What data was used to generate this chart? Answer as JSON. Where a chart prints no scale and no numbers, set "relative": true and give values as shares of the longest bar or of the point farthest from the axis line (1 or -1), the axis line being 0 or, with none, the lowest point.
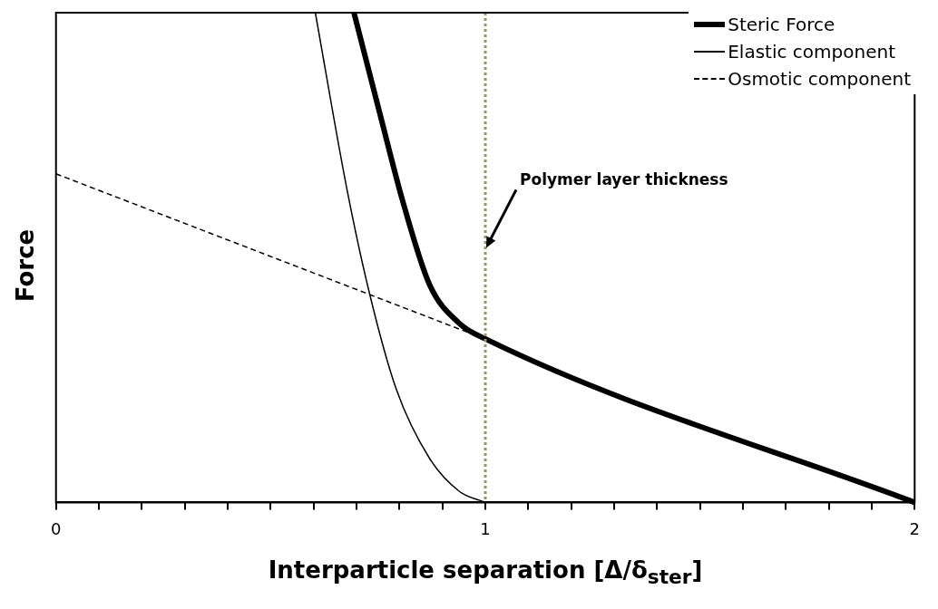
{
  "chart_data": {
    "type": "line",
    "relative": true,
    "xlabel": "Interparticle separation [Δ/δ$_{ster}$]",
    "ylabel": "Force",
    "xlim": [
      0,
      2
    ],
    "xticks": [
      0,
      {
        "value": 0.1,
        "label": null
      },
      {
        "value": 0.2,
        "label": null
      },
      {
        "value": 0.3,
        "label": null
      },
      {
        "value": 0.4,
        "label": null
      },
      {
        "value": 0.5,
        "label": null
      },
      {
        "value": 0.6,
        "label": null
      },
      {
        "value": 0.7,
        "label": null
      },
      {
        "value": 0.8,
        "label": null
      },
      {
        "value": 0.9,
        "label": null
      },
      1,
      {
        "value": 1.1,
        "label": null
      },
      {
        "value": 1.2,
        "label": null
      },
      {
        "value": 1.3,
        "label": null
      },
      {
        "value": 1.4,
        "label": null
      },
      {
        "value": 1.5,
        "label": null
      },
      {
        "value": 1.6,
        "label": null
      },
      {
        "value": 1.7,
        "label": null
      },
      {
        "value": 1.8,
        "label": null
      },
      {
        "value": 1.9,
        "label": null
      },
      2
    ],
    "series": [
      {
        "name": "Steric Force",
        "color": "#000000",
        "line_style": "solid",
        "x": [
          0.694,
          0.755,
          0.809,
          0.87,
          0.939,
          1,
          2
        ],
        "values": [
          1,
          0.792,
          0.611,
          0.445,
          0.366,
          0.334,
          0
        ]
      },
      {
        "name": "Elastic component",
        "color": "#000000",
        "line_style": "solid",
        "x": [
          0.604,
          0.678,
          0.731,
          0.793,
          0.87,
          0.939,
          1
        ],
        "values": [
          1,
          0.638,
          0.424,
          0.23,
          0.09,
          0.023,
          0
        ]
      },
      {
        "name": "Osmotic component",
        "color": "#000000",
        "line_style": "dashed",
        "x": [
          0,
          0.96
        ],
        "values": [
          0.671,
          0.347
        ]
      }
    ],
    "ref_lines": [
      {
        "axis": "x",
        "value": 1,
        "color": "#9e9463",
        "line_style": "dotted"
      }
    ],
    "annotations": [
      {
        "text": "Polymer layer thickness",
        "x": 1,
        "y": 0.52
      }
    ],
    "legend": "top right",
    "marker": "none",
    "grid": false
  }
}
